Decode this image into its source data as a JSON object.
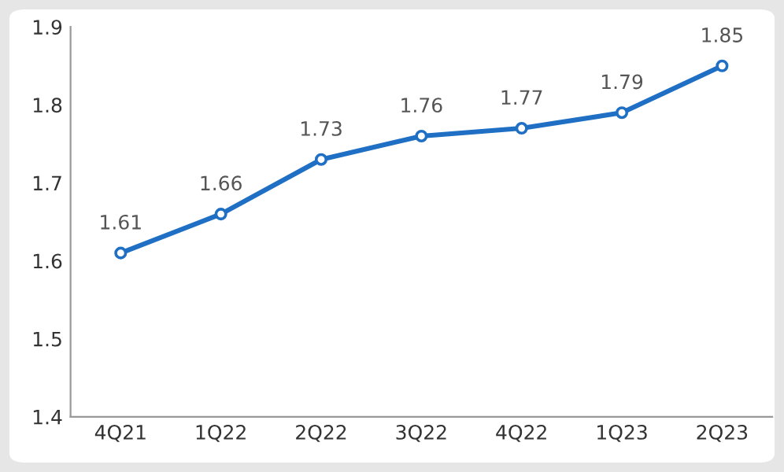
{
  "chart_data": {
    "type": "line",
    "categories": [
      "4Q21",
      "1Q22",
      "2Q22",
      "3Q22",
      "4Q22",
      "1Q23",
      "2Q23"
    ],
    "series": [
      {
        "color": "#1f6fc4",
        "values": [
          1.61,
          1.66,
          1.73,
          1.76,
          1.77,
          1.79,
          1.85
        ]
      }
    ],
    "ylim": [
      1.4,
      1.9
    ],
    "yticks": [
      1.4,
      1.5,
      1.6,
      1.7,
      1.8,
      1.9
    ],
    "data_labels": true,
    "marker": "circle",
    "line_style": "solid",
    "grid": false,
    "legend": false
  }
}
